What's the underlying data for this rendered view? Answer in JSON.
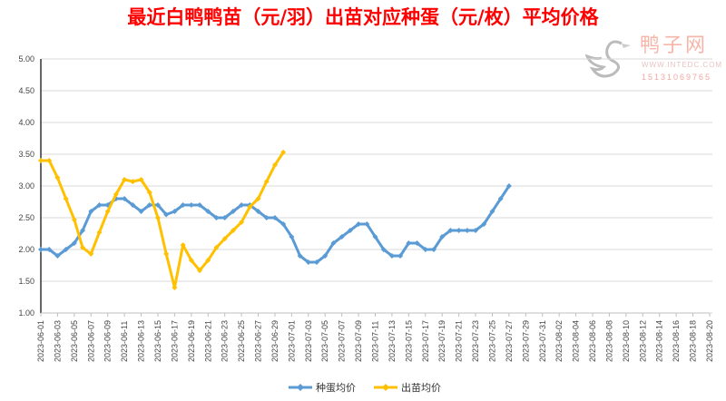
{
  "chart_data": {
    "type": "line",
    "title": "最近白鸭鸭苗（元/羽）出苗对应种蛋（元/枚）平均价格",
    "xlabel": "",
    "ylabel": "",
    "ylim": [
      1.0,
      5.0
    ],
    "yticks": [
      "1.00",
      "1.50",
      "2.00",
      "2.50",
      "3.00",
      "3.50",
      "4.00",
      "4.50",
      "5.00"
    ],
    "x_start": "2023-06-01",
    "x_days": 81,
    "xticks": [
      "2023-06-01",
      "2023-06-03",
      "2023-06-05",
      "2023-06-07",
      "2023-06-09",
      "2023-06-11",
      "2023-06-13",
      "2023-06-15",
      "2023-06-17",
      "2023-06-19",
      "2023-06-21",
      "2023-06-23",
      "2023-06-25",
      "2023-06-27",
      "2023-06-29",
      "2023-07-01",
      "2023-07-03",
      "2023-07-05",
      "2023-07-07",
      "2023-07-09",
      "2023-07-11",
      "2023-07-13",
      "2023-07-15",
      "2023-07-17",
      "2023-07-19",
      "2023-07-21",
      "2023-07-23",
      "2023-07-25",
      "2023-07-27",
      "2023-07-29",
      "2023-07-31",
      "2023-08-02",
      "2023-08-04",
      "2023-08-06",
      "2023-08-08",
      "2023-08-10",
      "2023-08-12",
      "2023-08-14",
      "2023-08-16",
      "2023-08-18",
      "2023-08-20"
    ],
    "grid": true,
    "legend": "bottom-center",
    "series": [
      {
        "name": "种蛋均价",
        "color": "#5b9bd5",
        "values": [
          2.0,
          2.0,
          1.9,
          2.0,
          2.1,
          2.3,
          2.6,
          2.7,
          2.7,
          2.8,
          2.8,
          2.7,
          2.6,
          2.7,
          2.7,
          2.55,
          2.6,
          2.7,
          2.7,
          2.7,
          2.6,
          2.5,
          2.5,
          2.6,
          2.7,
          2.7,
          2.6,
          2.5,
          2.5,
          2.4,
          2.2,
          1.9,
          1.8,
          1.8,
          1.9,
          2.1,
          2.2,
          2.3,
          2.4,
          2.4,
          2.2,
          2.0,
          1.9,
          1.9,
          2.1,
          2.1,
          2.0,
          2.0,
          2.2,
          2.3,
          2.3,
          2.3,
          2.3,
          2.4,
          2.6,
          2.8,
          3.0
        ]
      },
      {
        "name": "出苗均价",
        "color": "#ffc000",
        "values": [
          3.4,
          3.4,
          3.13,
          2.8,
          2.47,
          2.03,
          1.93,
          2.27,
          2.6,
          2.87,
          3.1,
          3.07,
          3.1,
          2.9,
          2.5,
          1.93,
          1.4,
          2.07,
          1.83,
          1.67,
          1.83,
          2.03,
          2.17,
          2.3,
          2.43,
          2.67,
          2.8,
          3.07,
          3.33,
          3.53
        ]
      }
    ]
  },
  "watermark": {
    "name": "鸭子网",
    "url": "WWW.INTEDC.COM",
    "phone": "15131069765"
  }
}
